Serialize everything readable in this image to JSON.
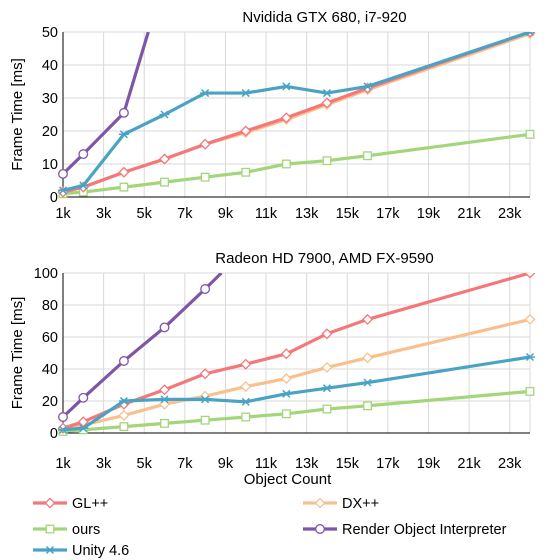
{
  "colors": {
    "gl": "#f4777a",
    "dx": "#f9c08d",
    "ours": "#a3d67a",
    "interp": "#7e56a8",
    "unity": "#4aa3c4",
    "grid": "#d9d9d9",
    "axis": "#000000"
  },
  "shared_xlabel": "Object Count",
  "legend": [
    {
      "key": "gl",
      "label": "GL++",
      "marker": "diamond"
    },
    {
      "key": "dx",
      "label": "DX++",
      "marker": "diamond"
    },
    {
      "key": "ours",
      "label": "ours",
      "marker": "square"
    },
    {
      "key": "interp",
      "label": "Render Object Interpreter",
      "marker": "circle"
    },
    {
      "key": "unity",
      "label": "Unity 4.6",
      "marker": "star"
    }
  ],
  "chart_data": [
    {
      "type": "line",
      "title": "Nvidida GTX 680, i7-920",
      "xlabel": "",
      "ylabel": "Frame Time [ms]",
      "xlim": [
        1000,
        24000
      ],
      "ylim": [
        0,
        50
      ],
      "xticks": [
        1000,
        3000,
        5000,
        7000,
        9000,
        11000,
        13000,
        15000,
        17000,
        19000,
        21000,
        23000
      ],
      "xtick_labels": [
        "1k",
        "3k",
        "5k",
        "7k",
        "9k",
        "11k",
        "13k",
        "15k",
        "17k",
        "19k",
        "21k",
        "23k"
      ],
      "yticks": [
        0,
        10,
        20,
        30,
        40,
        50
      ],
      "ytick_labels": [
        "0",
        "10",
        "20",
        "30",
        "40",
        "50"
      ],
      "grid": true,
      "series": [
        {
          "key": "gl",
          "name": "GL++",
          "marker": "diamond",
          "x": [
            1000,
            2000,
            4000,
            6000,
            8000,
            10000,
            12000,
            14000,
            16000,
            24000
          ],
          "y": [
            1.5,
            3,
            7.5,
            11.5,
            16,
            20,
            24,
            28.5,
            33,
            50
          ]
        },
        {
          "key": "dx",
          "name": "DX++",
          "marker": "diamond",
          "x": [
            1000,
            2000,
            4000,
            6000,
            8000,
            10000,
            12000,
            14000,
            16000,
            24000
          ],
          "y": [
            1.5,
            3,
            7.5,
            11.5,
            16,
            19.5,
            23.5,
            28,
            32.5,
            49.5
          ]
        },
        {
          "key": "ours",
          "name": "ours",
          "marker": "square",
          "x": [
            1000,
            2000,
            4000,
            6000,
            8000,
            10000,
            12000,
            14000,
            16000,
            24000
          ],
          "y": [
            1,
            1.5,
            3,
            4.5,
            6,
            7.5,
            10,
            11,
            12.5,
            19
          ]
        },
        {
          "key": "interp",
          "name": "Render Object Interpreter",
          "marker": "circle",
          "x": [
            1000,
            2000,
            4000,
            5200
          ],
          "y": [
            7,
            13,
            25.5,
            50
          ],
          "clip": true
        },
        {
          "key": "unity",
          "name": "Unity 4.6",
          "marker": "star",
          "x": [
            1000,
            2000,
            4000,
            6000,
            8000,
            10000,
            12000,
            14000,
            16000,
            24000
          ],
          "y": [
            2,
            3.5,
            19,
            25,
            31.5,
            31.5,
            33.5,
            31.5,
            33.5,
            50
          ]
        }
      ]
    },
    {
      "type": "line",
      "title": "Radeon HD 7900, AMD FX-9590",
      "xlabel": "Object Count",
      "ylabel": "Frame Time [ms]",
      "xlim": [
        1000,
        24000
      ],
      "ylim": [
        0,
        100
      ],
      "xticks": [
        1000,
        3000,
        5000,
        7000,
        9000,
        11000,
        13000,
        15000,
        17000,
        19000,
        21000,
        23000
      ],
      "xtick_labels": [
        "1k",
        "3k",
        "5k",
        "7k",
        "9k",
        "11k",
        "13k",
        "15k",
        "17k",
        "19k",
        "21k",
        "23k"
      ],
      "yticks": [
        0,
        20,
        40,
        60,
        80,
        100
      ],
      "ytick_labels": [
        "0",
        "20",
        "40",
        "60",
        "80",
        "100"
      ],
      "grid": true,
      "series": [
        {
          "key": "gl",
          "name": "GL++",
          "marker": "diamond",
          "x": [
            1000,
            2000,
            4000,
            6000,
            8000,
            10000,
            12000,
            14000,
            16000,
            24000
          ],
          "y": [
            3,
            7,
            18,
            27,
            37,
            43,
            49.5,
            62,
            71,
            100
          ]
        },
        {
          "key": "dx",
          "name": "DX++",
          "marker": "diamond",
          "x": [
            1000,
            2000,
            4000,
            6000,
            8000,
            10000,
            12000,
            14000,
            16000,
            24000
          ],
          "y": [
            3,
            5,
            11,
            18,
            23,
            29,
            34,
            41,
            47,
            71
          ]
        },
        {
          "key": "ours",
          "name": "ours",
          "marker": "square",
          "x": [
            1000,
            2000,
            4000,
            6000,
            8000,
            10000,
            12000,
            14000,
            16000,
            24000
          ],
          "y": [
            1,
            2,
            4,
            6,
            8,
            10,
            12,
            15,
            17,
            26
          ]
        },
        {
          "key": "interp",
          "name": "Render Object Interpreter",
          "marker": "circle",
          "x": [
            1000,
            2000,
            4000,
            6000,
            8000,
            8800
          ],
          "y": [
            10,
            22,
            45,
            66,
            90,
            100
          ],
          "clip": true
        },
        {
          "key": "unity",
          "name": "Unity 4.6",
          "marker": "star",
          "x": [
            1000,
            2000,
            4000,
            6000,
            8000,
            10000,
            12000,
            14000,
            16000,
            24000
          ],
          "y": [
            2,
            3,
            20,
            21,
            21,
            19.5,
            24.5,
            28,
            31.5,
            47.5
          ]
        }
      ]
    }
  ]
}
